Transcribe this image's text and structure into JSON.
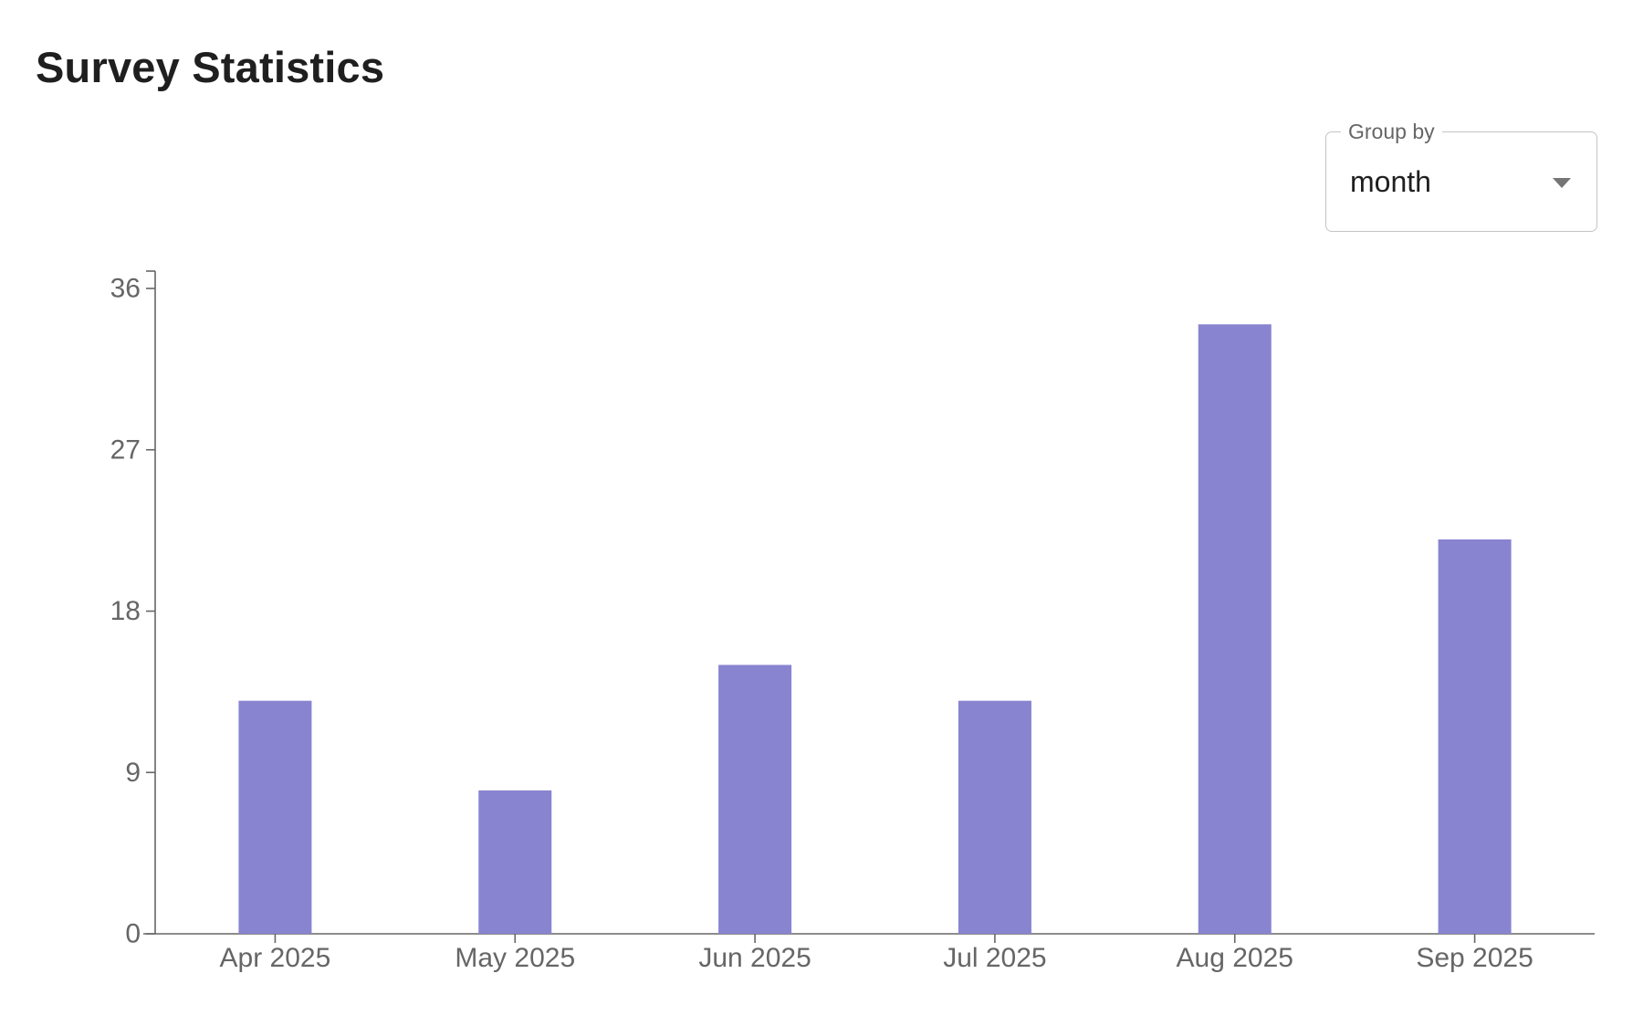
{
  "header": {
    "title": "Survey Statistics"
  },
  "controls": {
    "group_by_label": "Group by",
    "group_by_value": "month",
    "caret_icon": "chevron-down-icon"
  },
  "colors": {
    "bar": "#8884d0",
    "axis": "#666666"
  },
  "chart_data": {
    "type": "bar",
    "categories": [
      "Apr 2025",
      "May 2025",
      "Jun 2025",
      "Jul 2025",
      "Aug 2025",
      "Sep 2025"
    ],
    "values": [
      13,
      8,
      15,
      13,
      34,
      22
    ],
    "ylim": [
      0,
      36
    ],
    "yticks": [
      0,
      9,
      18,
      27,
      36
    ],
    "ytick_labels": [
      "0",
      "9",
      "18",
      "27",
      "36"
    ],
    "grid": false,
    "legend": "none"
  }
}
